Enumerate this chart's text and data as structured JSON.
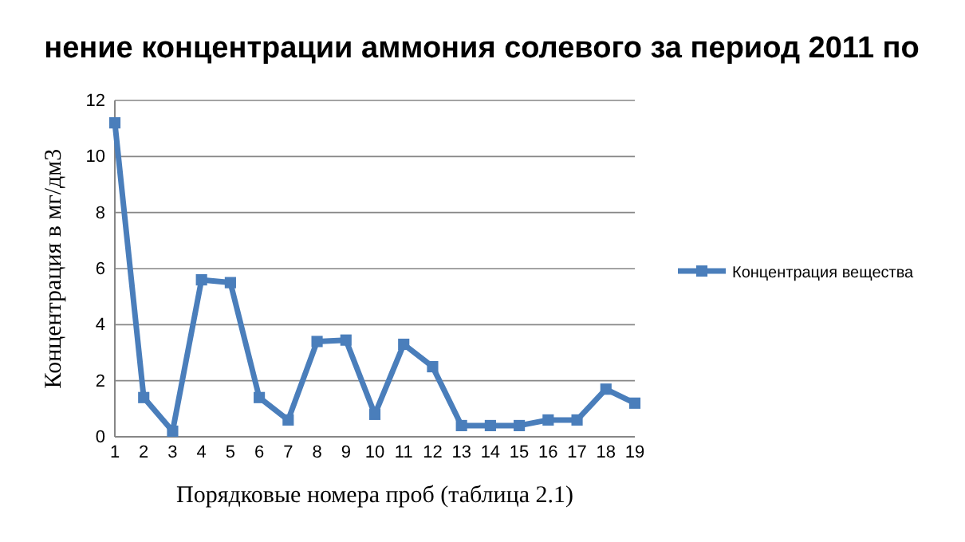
{
  "chart_data": {
    "type": "line",
    "title": "нение концентрации аммония солевого за период 2011 по",
    "xlabel": "Порядковые номера проб (таблица 2.1)",
    "ylabel": "Концентрация в мг/дм3",
    "categories": [
      "1",
      "2",
      "3",
      "4",
      "5",
      "6",
      "7",
      "8",
      "9",
      "10",
      "11",
      "12",
      "13",
      "14",
      "15",
      "16",
      "17",
      "18",
      "19"
    ],
    "series": [
      {
        "name": "Концентрация вещества",
        "color": "#4a7ebb",
        "values": [
          11.2,
          1.4,
          0.2,
          5.6,
          5.5,
          1.4,
          0.6,
          3.4,
          3.45,
          0.8,
          3.3,
          2.5,
          0.4,
          0.4,
          0.4,
          0.6,
          0.6,
          1.7,
          1.2
        ]
      }
    ],
    "ylim": [
      0,
      12
    ],
    "yticks": [
      0,
      2,
      4,
      6,
      8,
      10,
      12
    ],
    "grid": "y",
    "legend": "right",
    "marker": "square",
    "line_style": "solid"
  }
}
